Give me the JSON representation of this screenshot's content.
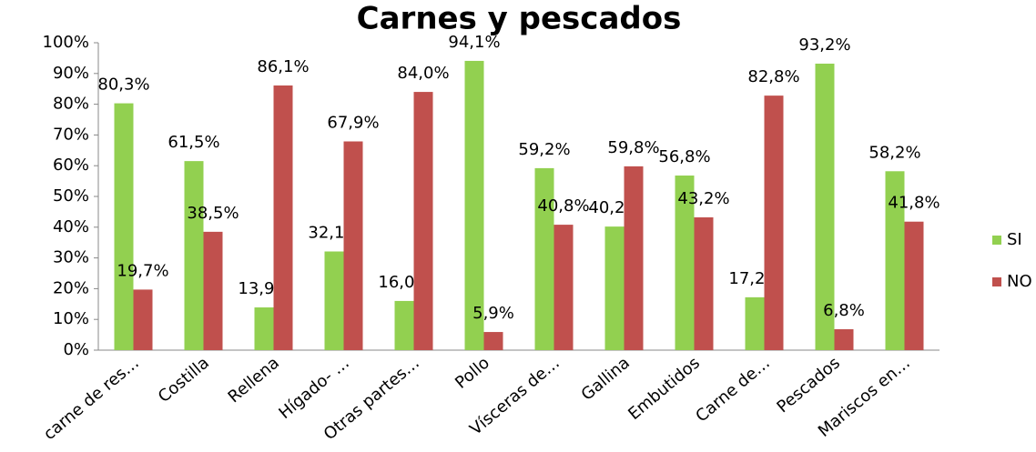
{
  "chart_data": {
    "type": "bar",
    "title": "Carnes y pescados",
    "categories": [
      "carne de res…",
      "Costilla",
      "Rellena",
      "Hígado- …",
      "Otras partes…",
      "Pollo",
      "Vísceras de…",
      "Gallina",
      "Embutidos",
      "Carne de…",
      "Pescados",
      "Mariscos en…"
    ],
    "series": [
      {
        "name": "SI",
        "color": "#92d050",
        "values": [
          80.3,
          61.5,
          13.9,
          32.1,
          16.0,
          94.1,
          59.2,
          40.2,
          56.8,
          17.2,
          93.2,
          58.2
        ],
        "value_labels": [
          "80,3%",
          "61,5%",
          "13,9%",
          "32,1%",
          "16,0%",
          "94,1%",
          "59,2%",
          "40,2%",
          "56,8%",
          "17,2%",
          "93,2%",
          "58,2%"
        ]
      },
      {
        "name": "NO",
        "color": "#c0504d",
        "values": [
          19.7,
          38.5,
          86.1,
          67.9,
          84.0,
          5.9,
          40.8,
          59.8,
          43.2,
          82.8,
          6.8,
          41.8
        ],
        "value_labels": [
          "19,7%",
          "38,5%",
          "86,1%",
          "67,9%",
          "84,0%",
          "5,9%",
          "40,8%",
          "59,8%",
          "43,2%",
          "82,8%",
          "6,8%",
          "41,8%"
        ]
      }
    ],
    "ylim": [
      0,
      100
    ],
    "yticks": [
      {
        "value": 0,
        "label": "0%"
      },
      {
        "value": 10,
        "label": "10%"
      },
      {
        "value": 20,
        "label": "20%"
      },
      {
        "value": 30,
        "label": "30%"
      },
      {
        "value": 40,
        "label": "40%"
      },
      {
        "value": 50,
        "label": "50%"
      },
      {
        "value": 60,
        "label": "60%"
      },
      {
        "value": 70,
        "label": "70%"
      },
      {
        "value": 80,
        "label": "80%"
      },
      {
        "value": 90,
        "label": "90%"
      },
      {
        "value": 100,
        "label": "100%"
      }
    ],
    "grid": false,
    "legend": "right"
  }
}
